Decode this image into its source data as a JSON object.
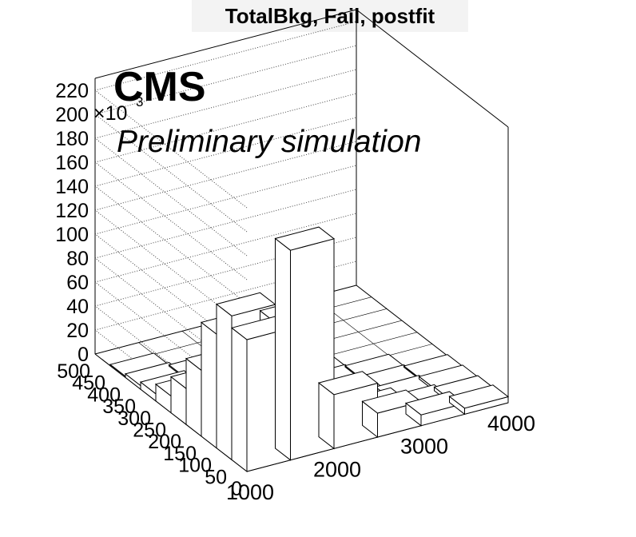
{
  "title": "TotalBkg, Fail, postfit",
  "labels": {
    "experiment": "CMS",
    "subtitle": "Preliminary simulation",
    "z_multiplier": "×10",
    "z_multiplier_exp": "3"
  },
  "chart_data": {
    "type": "bar3d",
    "title": "TotalBkg, Fail, postfit",
    "x_axis": {
      "ticks": [
        "1000",
        "2000",
        "3000",
        "4000"
      ],
      "range": [
        1000,
        4000
      ]
    },
    "y_axis": {
      "ticks": [
        "0",
        "50",
        "100",
        "150",
        "200",
        "250",
        "300",
        "350",
        "400",
        "450",
        "500"
      ],
      "range": [
        0,
        500
      ]
    },
    "z_axis": {
      "ticks": [
        "0",
        "20",
        "40",
        "60",
        "80",
        "100",
        "120",
        "140",
        "160",
        "180",
        "200",
        "220"
      ],
      "range": [
        0,
        230
      ],
      "multiplier": "×10³",
      "grid": true
    },
    "bins_x_edges": [
      1000,
      1500,
      2000,
      2500,
      3000,
      3500,
      4000
    ],
    "bins_y_edges": [
      0,
      50,
      100,
      150,
      200,
      250,
      300,
      350,
      400,
      450,
      500
    ],
    "values": [
      [
        110,
        120,
        95,
        55,
        30,
        14,
        6,
        3,
        1,
        0.5
      ],
      [
        175,
        105,
        60,
        30,
        15,
        7,
        3,
        1,
        0.5,
        0.3
      ],
      [
        45,
        30,
        18,
        10,
        5,
        2,
        1,
        0.5,
        0.2,
        0.1
      ],
      [
        20,
        12,
        7,
        4,
        2,
        1,
        0.5,
        0.2,
        0.1,
        0.05
      ],
      [
        9,
        5,
        3,
        2,
        1,
        0.5,
        0.2,
        0.1,
        0.05,
        0.02
      ],
      [
        5,
        3,
        2,
        1,
        0.5,
        0.2,
        0.1,
        0.05,
        0.02,
        0.01
      ]
    ]
  }
}
